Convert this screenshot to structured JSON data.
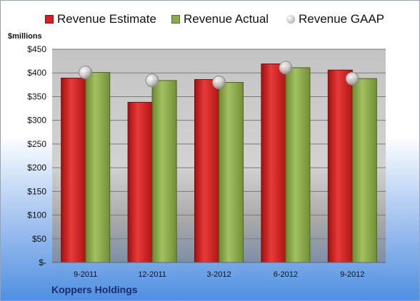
{
  "chart_data": {
    "type": "bar",
    "title": "",
    "ylabel": "$millions",
    "xlabel": "",
    "ylim": [
      0,
      450
    ],
    "yticks": [
      "$-",
      "$50",
      "$100",
      "$150",
      "$200",
      "$250",
      "$300",
      "$350",
      "$400",
      "$450"
    ],
    "categories": [
      "9-2011",
      "12-2011",
      "3-2012",
      "6-2012",
      "9-2012"
    ],
    "series": [
      {
        "name": "Revenue Estimate",
        "type": "bar",
        "color": "#d42020",
        "values": [
          389,
          338,
          386,
          419,
          406
        ]
      },
      {
        "name": "Revenue Actual",
        "type": "bar",
        "color": "#8cab4a",
        "values": [
          401,
          384,
          380,
          411,
          388
        ]
      },
      {
        "name": "Revenue GAAP",
        "type": "marker",
        "color": "#c8c8c8",
        "values": [
          401,
          384,
          380,
          411,
          388
        ]
      }
    ],
    "legend_position": "top",
    "grid": true
  },
  "footer": {
    "company": "Koppers Holdings"
  }
}
